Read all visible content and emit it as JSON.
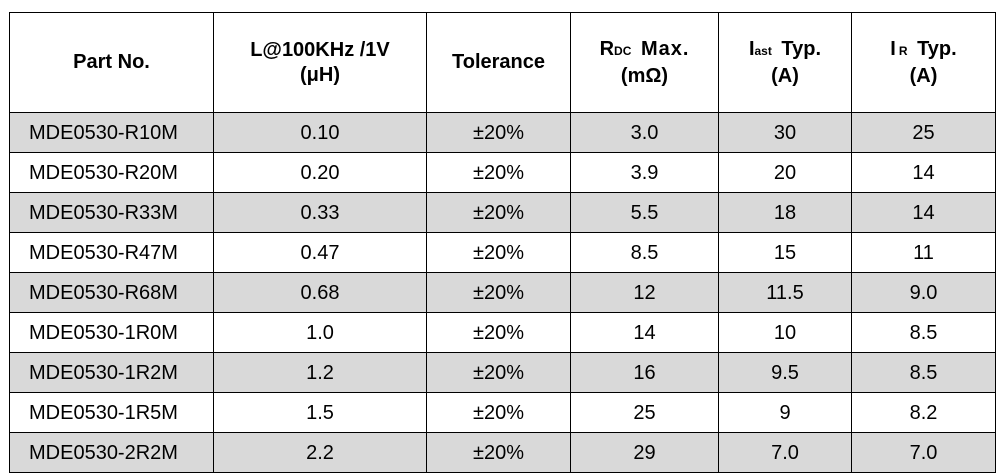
{
  "table": {
    "headers": {
      "part_no": "Part No.",
      "inductance": {
        "line1": "L@100KHz /1V",
        "line2": "(μH)"
      },
      "tolerance": "Tolerance",
      "rdc": {
        "main": "R",
        "sub": "DC",
        "rest": "Max.",
        "line2": "(mΩ)"
      },
      "isat": {
        "main": "I",
        "sub": "ast",
        "rest": "Typ.",
        "line2": "(A)"
      },
      "ir": {
        "main": "I",
        "sub": "R",
        "rest": "Typ.",
        "line2": "(A)"
      }
    },
    "rows": [
      {
        "part": "MDE0530-R10M",
        "l": "0.10",
        "tol": "±20%",
        "rdc": "3.0",
        "isat": "30",
        "ir": "25"
      },
      {
        "part": "MDE0530-R20M",
        "l": "0.20",
        "tol": "±20%",
        "rdc": "3.9",
        "isat": "20",
        "ir": "14"
      },
      {
        "part": "MDE0530-R33M",
        "l": "0.33",
        "tol": "±20%",
        "rdc": "5.5",
        "isat": "18",
        "ir": "14"
      },
      {
        "part": "MDE0530-R47M",
        "l": "0.47",
        "tol": "±20%",
        "rdc": "8.5",
        "isat": "15",
        "ir": "11"
      },
      {
        "part": "MDE0530-R68M",
        "l": "0.68",
        "tol": "±20%",
        "rdc": "12",
        "isat": "11.5",
        "ir": "9.0"
      },
      {
        "part": "MDE0530-1R0M",
        "l": "1.0",
        "tol": "±20%",
        "rdc": "14",
        "isat": "10",
        "ir": "8.5"
      },
      {
        "part": "MDE0530-1R2M",
        "l": "1.2",
        "tol": "±20%",
        "rdc": "16",
        "isat": "9.5",
        "ir": "8.5"
      },
      {
        "part": "MDE0530-1R5M",
        "l": "1.5",
        "tol": "±20%",
        "rdc": "25",
        "isat": "9",
        "ir": "8.2"
      },
      {
        "part": "MDE0530-2R2M",
        "l": "2.2",
        "tol": "±20%",
        "rdc": "29",
        "isat": "7.0",
        "ir": "7.0"
      }
    ]
  },
  "colors": {
    "stripe": "#d9d9d9",
    "border": "#000000"
  }
}
